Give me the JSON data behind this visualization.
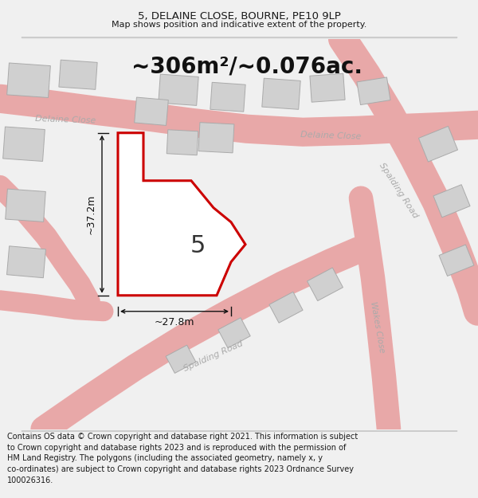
{
  "title": "5, DELAINE CLOSE, BOURNE, PE10 9LP",
  "subtitle": "Map shows position and indicative extent of the property.",
  "area_text": "~306m²/~0.076ac.",
  "width_label": "~27.8m",
  "height_label": "~37.2m",
  "plot_number": "5",
  "footer": "Contains OS data © Crown copyright and database right 2021. This information is subject\nto Crown copyright and database rights 2023 and is reproduced with the permission of\nHM Land Registry. The polygons (including the associated geometry, namely x, y\nco-ordinates) are subject to Crown copyright and database rights 2023 Ordnance Survey\n100026316.",
  "bg_color": "#f0f0f0",
  "map_bg": "#ffffff",
  "road_stroke": "#e8a8a8",
  "road_fill": "#fce8e8",
  "plot_edge": "#cc0000",
  "building_fill": "#d0d0d0",
  "building_edge": "#aaaaaa",
  "dim_color": "#111111",
  "label_color": "#aaaaaa",
  "title_fontsize": 9.5,
  "subtitle_fontsize": 8.0,
  "area_fontsize": 20,
  "label_fontsize": 9,
  "footer_fontsize": 7.0
}
